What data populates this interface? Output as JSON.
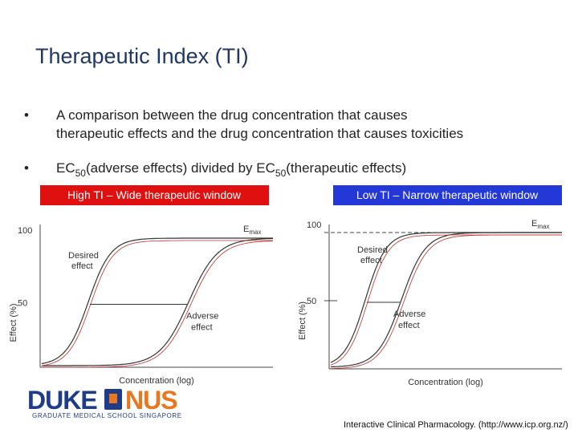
{
  "title": "Therapeutic Index (TI)",
  "bullets": [
    {
      "lines": [
        "A comparison between the drug concentration that causes",
        "therapeutic effects and the drug concentration that causes toxicities"
      ]
    },
    {
      "parts": [
        "EC",
        "50",
        "(adverse effects) divided by EC",
        "50",
        "(therapeutic effects)"
      ]
    }
  ],
  "figures": [
    {
      "label": "High TI – Wide therapeutic window",
      "y_axis_label": "Effect (%)",
      "ticks": [
        "100",
        "50"
      ],
      "emax": [
        "E",
        "max"
      ],
      "desired": [
        "Desired",
        "effect"
      ],
      "adverse": [
        "Adverse",
        "effect"
      ],
      "x_axis_label": "Concentration (log)"
    },
    {
      "label": "Low TI – Narrow therapeutic window",
      "y_axis_label": "Effect (%)",
      "ticks": [
        "100",
        "50"
      ],
      "emax": [
        "E",
        "max"
      ],
      "desired": [
        "Desired",
        "effect"
      ],
      "adverse": [
        "Adverse",
        "effect"
      ],
      "x_axis_label": "Concentration (log)"
    }
  ],
  "logo": {
    "left": "DUKE",
    "right": "NUS",
    "subtitle": "GRADUATE MEDICAL SCHOOL SINGAPORE"
  },
  "citation": "Interactive Clinical Pharmacology. (http://www.icp.org.nz/)"
}
